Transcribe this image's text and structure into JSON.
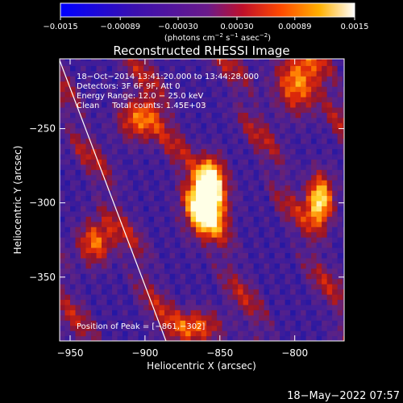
{
  "chart_data": {
    "type": "heatmap",
    "title": "Reconstructed RHESSI Image",
    "xlabel": "Heliocentric X (arcsec)",
    "ylabel": "Heliocentric Y (arcsec)",
    "xlim": [
      -957,
      -767
    ],
    "ylim": [
      -393,
      -203
    ],
    "x_ticks": [
      -950,
      -900,
      -850,
      -800
    ],
    "x_tick_labels": [
      "−950",
      "−900",
      "−850",
      "−800"
    ],
    "y_ticks": [
      -250,
      -300,
      -350
    ],
    "y_tick_labels": [
      "−250",
      "−300",
      "−350"
    ],
    "colorbar": {
      "min": -0.0015,
      "max": 0.0015,
      "ticks": [
        -0.0015,
        -0.00089,
        -0.0003,
        0.0003,
        0.00089,
        0.0015
      ],
      "tick_labels": [
        "−0.0015",
        "−0.00089",
        "−0.00030",
        "0.00030",
        "0.00089",
        "0.0015"
      ],
      "unit_label_parts": [
        "(photons cm",
        "−2",
        " s",
        "−1",
        " asec",
        "−2",
        ")"
      ],
      "colormap": "blue-purple-red-orange-yellow-white"
    },
    "annotations": [
      "18−Oct−2014 13:41:20.000 to 13:44:28.000",
      "Detectors: 3F 6F 9F, Att 0",
      "Energy Range: 12.0 − 25.0 keV",
      "Clean     Total counts: 1.45E+03"
    ],
    "peak_label": "Position of Peak = [−861,−302]",
    "peak": {
      "x": -861,
      "y": -302
    },
    "limb_line": [
      [
        -957,
        -204
      ],
      [
        -886,
        -393
      ]
    ],
    "features": [
      {
        "x": -861,
        "y": -302,
        "sx": 9,
        "sy": 14,
        "amp": 1.0
      },
      {
        "x": -858,
        "y": -285,
        "sx": 6,
        "sy": 10,
        "amp": 0.7
      },
      {
        "x": -785,
        "y": -300,
        "sx": 6,
        "sy": 12,
        "amp": 0.85
      },
      {
        "x": -800,
        "y": -220,
        "sx": 10,
        "sy": 14,
        "amp": 0.6
      },
      {
        "x": -935,
        "y": -328,
        "sx": 8,
        "sy": 10,
        "amp": 0.55
      },
      {
        "x": -905,
        "y": -245,
        "sx": 10,
        "sy": 10,
        "amp": 0.55
      },
      {
        "x": -868,
        "y": -385,
        "sx": 12,
        "sy": 8,
        "amp": 0.5
      }
    ]
  },
  "timestamp": "18−May−2022 07:57"
}
